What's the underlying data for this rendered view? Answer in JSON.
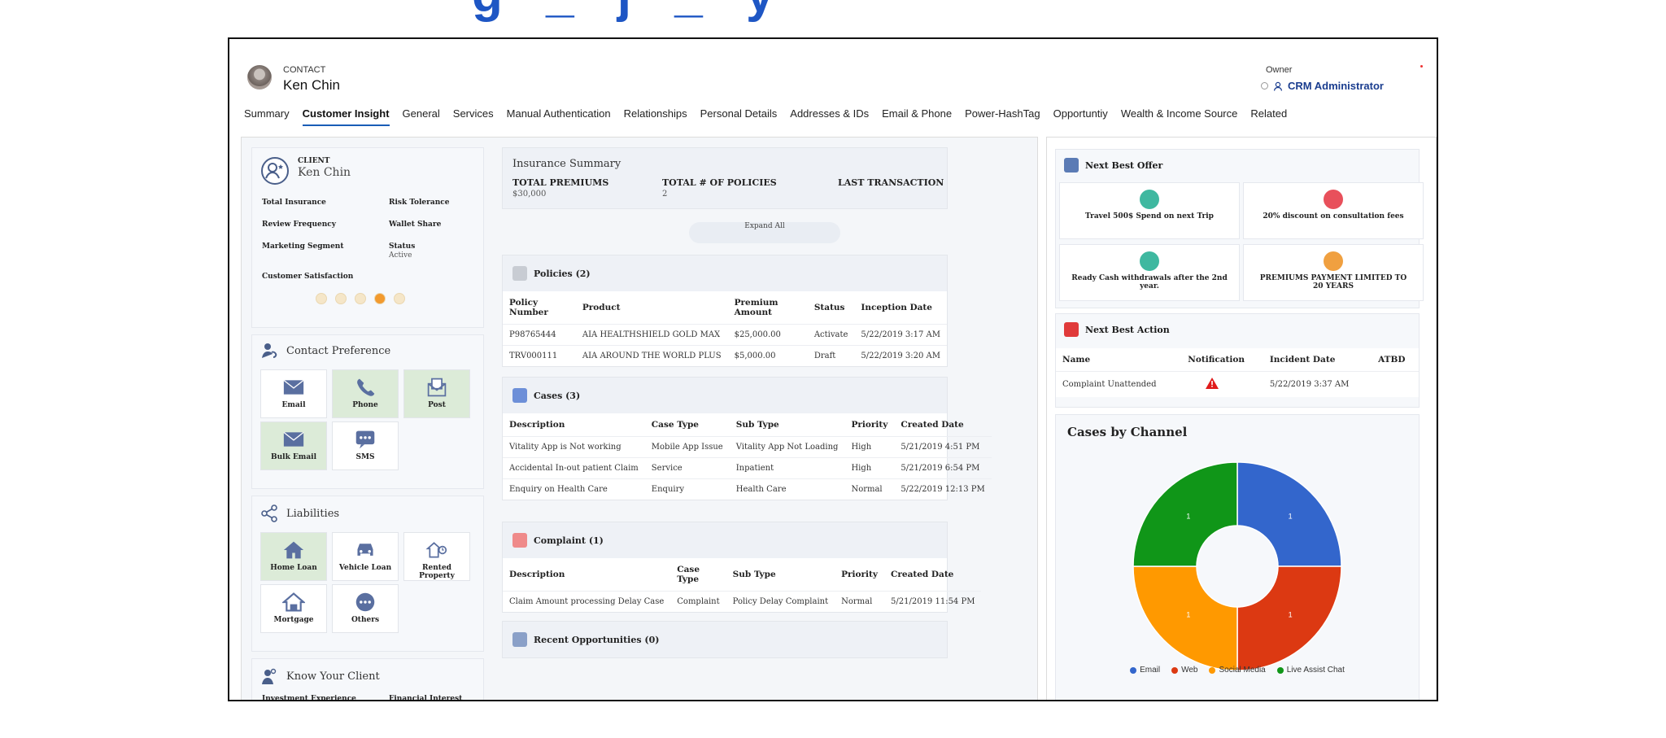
{
  "contact": {
    "type": "CONTACT",
    "name": "Ken Chin"
  },
  "owner": {
    "label": "Owner",
    "value": "CRM Administrator"
  },
  "tabs": [
    "Summary",
    "Customer Insight",
    "General",
    "Services",
    "Manual Authentication",
    "Relationships",
    "Personal Details",
    "Addresses & IDs",
    "Email & Phone",
    "Power-HashTag",
    "Opportuntiy",
    "Wealth & Income Source",
    "Related"
  ],
  "active_tab": "Customer Insight",
  "client": {
    "type": "CLIENT",
    "name": "Ken Chin",
    "fields": {
      "total_insurance": "Total Insurance",
      "risk_tolerance": "Risk Tolerance",
      "review_frequency": "Review Frequency",
      "wallet_share": "Wallet Share",
      "marketing_segment": "Marketing Segment",
      "status_label": "Status",
      "status_value": "Active",
      "customer_satisfaction": "Customer Satisfaction"
    },
    "satisfaction_level": 4
  },
  "contact_preference": {
    "title": "Contact Preference",
    "items": [
      "Email",
      "Phone",
      "Post",
      "Bulk Email",
      "SMS"
    ]
  },
  "liabilities": {
    "title": "Liabilities",
    "items": [
      "Home Loan",
      "Vehicle Loan",
      "Rented Property",
      "Mortgage",
      "Others"
    ]
  },
  "kyc": {
    "title": "Know Your Client",
    "fields": [
      "Investment Experience",
      "Financial Interest"
    ]
  },
  "insurance_summary": {
    "title": "Insurance Summary",
    "total_premiums_label": "TOTAL PREMIUMS",
    "total_premiums": "$30,000",
    "total_policies_label": "TOTAL # OF POLICIES",
    "total_policies": "2",
    "last_transaction_label": "LAST TRANSACTION",
    "expand_all": "Expand All"
  },
  "policies": {
    "title": "Policies (2)",
    "columns": [
      "Policy Number",
      "Product",
      "Premium Amount",
      "Status",
      "Inception Date"
    ],
    "rows": [
      [
        "P98765444",
        "AIA HEALTHSHIELD GOLD MAX",
        "$25,000.00",
        "Activate",
        "5/22/2019 3:17 AM"
      ],
      [
        "TRV000111",
        "AIA AROUND THE WORLD PLUS",
        "$5,000.00",
        "Draft",
        "5/22/2019 3:20 AM"
      ]
    ]
  },
  "cases": {
    "title": "Cases (3)",
    "columns": [
      "Description",
      "Case Type",
      "Sub Type",
      "Priority",
      "Created Date"
    ],
    "rows": [
      [
        "Vitality App is Not working",
        "Mobile App Issue",
        "Vitality App Not Loading",
        "High",
        "5/21/2019 4:51 PM"
      ],
      [
        "Accidental In-out patient Claim",
        "Service",
        "Inpatient",
        "High",
        "5/21/2019 6:54 PM"
      ],
      [
        "Enquiry on Health Care",
        "Enquiry",
        "Health Care",
        "Normal",
        "5/22/2019 12:13 PM"
      ]
    ]
  },
  "complaint": {
    "title": "Complaint (1)",
    "columns": [
      "Description",
      "Case Type",
      "Sub Type",
      "Priority",
      "Created Date"
    ],
    "rows": [
      [
        "Claim Amount processing Delay Case",
        "Complaint",
        "Policy Delay Complaint",
        "Normal",
        "5/21/2019 11:54 PM"
      ]
    ]
  },
  "opportunities": {
    "title": "Recent Opportunities (0)"
  },
  "next_best_offer": {
    "title": "Next Best Offer",
    "offers": [
      "Travel 500$ Spend on next Trip",
      "20% discount on consultation fees",
      "Ready Cash withdrawals after the 2nd year.",
      "PREMIUMS PAYMENT LIMITED TO 20 YEARS"
    ],
    "colors": [
      "#3fb8a0",
      "#e8505b",
      "#3fb8a0",
      "#f0a040"
    ]
  },
  "next_best_action": {
    "title": "Next Best Action",
    "columns": [
      "Name",
      "Notification",
      "Incident Date",
      "ATBD"
    ],
    "rows": [
      [
        "Complaint Unattended",
        "5/22/2019 3:37 AM"
      ]
    ]
  },
  "chart_data": {
    "type": "pie",
    "title": "Cases by Channel",
    "categories": [
      "Email",
      "Web",
      "Social Media",
      "Live Assist Chat"
    ],
    "values": [
      1,
      1,
      1,
      1
    ],
    "colors": [
      "#3366cc",
      "#dc3912",
      "#ff9900",
      "#109618"
    ],
    "legend": "bottom",
    "donut": true
  }
}
